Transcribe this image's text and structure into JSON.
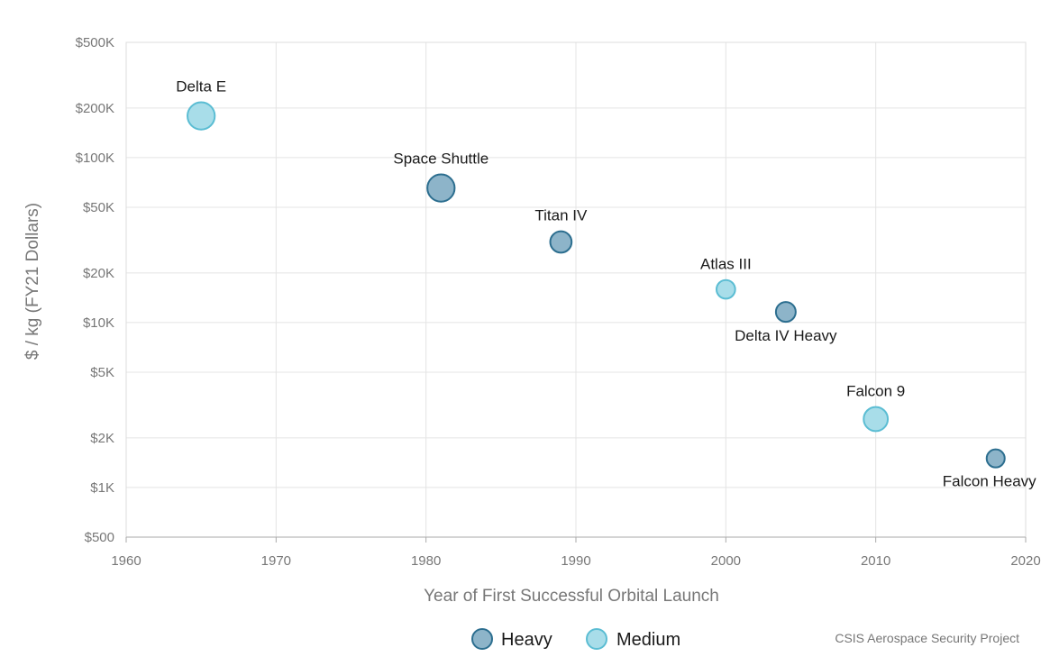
{
  "chart_data": {
    "type": "scatter",
    "xlabel": "Year of First Successful Orbital Launch",
    "ylabel": "$ / kg (FY21 Dollars)",
    "xlim": [
      1960,
      2020
    ],
    "ylim": [
      500,
      500000
    ],
    "y_scale": "log",
    "grid": true,
    "x_ticks": [
      {
        "value": 1960,
        "label": "1960"
      },
      {
        "value": 1970,
        "label": "1970"
      },
      {
        "value": 1980,
        "label": "1980"
      },
      {
        "value": 1990,
        "label": "1990"
      },
      {
        "value": 2000,
        "label": "2000"
      },
      {
        "value": 2010,
        "label": "2010"
      },
      {
        "value": 2020,
        "label": "2020"
      }
    ],
    "y_ticks": [
      {
        "value": 500000,
        "label": "$500K"
      },
      {
        "value": 200000,
        "label": "$200K"
      },
      {
        "value": 100000,
        "label": "$100K"
      },
      {
        "value": 50000,
        "label": "$50K"
      },
      {
        "value": 20000,
        "label": "$20K"
      },
      {
        "value": 10000,
        "label": "$10K"
      },
      {
        "value": 5000,
        "label": "$5K"
      },
      {
        "value": 2000,
        "label": "$2K"
      },
      {
        "value": 1000,
        "label": "$1K"
      },
      {
        "value": 500,
        "label": "$500"
      }
    ],
    "legend_position": "bottom-center",
    "categories": [
      {
        "name": "Heavy",
        "color": "#8db4c9",
        "stroke": "#2c6e8f"
      },
      {
        "name": "Medium",
        "color": "#a8dde9",
        "stroke": "#5bbdd3"
      }
    ],
    "points": [
      {
        "label": "Delta E",
        "x": 1965,
        "y": 179000,
        "category": "Medium",
        "size": 3.0,
        "label_pos": "above"
      },
      {
        "label": "Space Shuttle",
        "x": 1981,
        "y": 65400,
        "category": "Heavy",
        "size": 3.0,
        "label_pos": "above"
      },
      {
        "label": "Titan IV",
        "x": 1989,
        "y": 30800,
        "category": "Heavy",
        "size": 1.6,
        "label_pos": "above"
      },
      {
        "label": "Atlas III",
        "x": 2000,
        "y": 15900,
        "category": "Medium",
        "size": 1.1,
        "label_pos": "above"
      },
      {
        "label": "Delta IV Heavy",
        "x": 2004,
        "y": 11600,
        "category": "Heavy",
        "size": 1.3,
        "label_pos": "below"
      },
      {
        "label": "Falcon 9",
        "x": 2010,
        "y": 2600,
        "category": "Medium",
        "size": 2.2,
        "label_pos": "above"
      },
      {
        "label": "Falcon Heavy",
        "x": 2018,
        "y": 1500,
        "category": "Heavy",
        "size": 1.0,
        "label_pos": "below"
      }
    ]
  },
  "credit": "CSIS Aerospace Security Project"
}
